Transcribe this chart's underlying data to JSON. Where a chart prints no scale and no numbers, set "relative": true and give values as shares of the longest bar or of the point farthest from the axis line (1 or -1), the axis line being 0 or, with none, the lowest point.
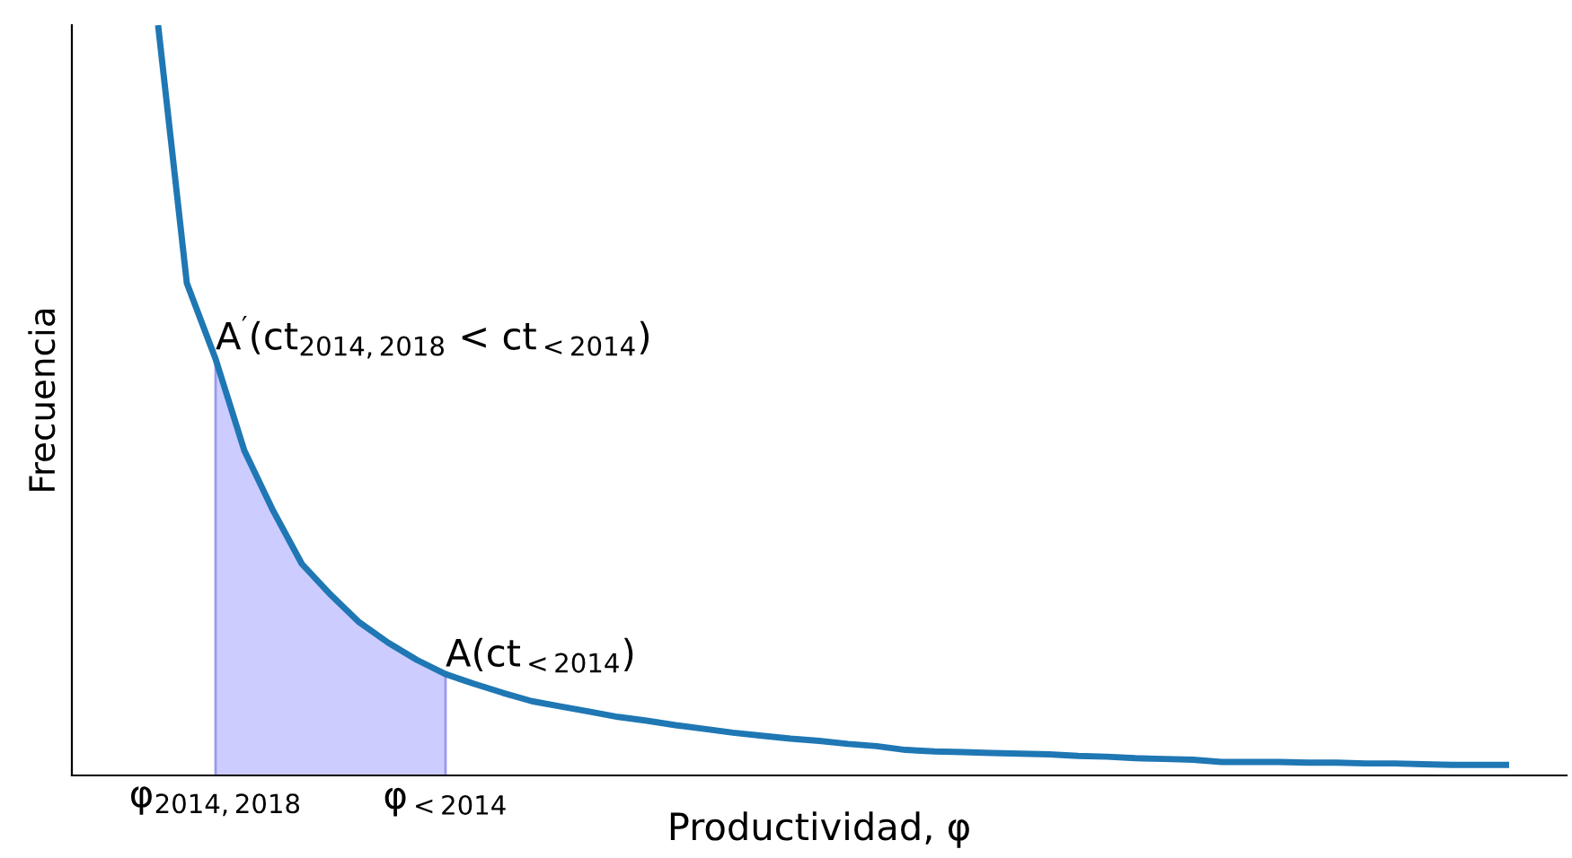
{
  "chart_data": {
    "type": "line",
    "relative": true,
    "xlabel": "Productividad, φ",
    "ylabel": "Frecuencia",
    "categories": [
      null,
      null,
      "φ$_{2014,2018}$",
      null,
      null,
      null,
      null,
      null,
      null,
      null,
      "φ$_{<2014}$",
      null,
      null,
      null,
      null,
      null,
      null,
      null,
      null,
      null,
      null,
      null,
      null,
      null,
      null,
      null,
      null,
      null,
      null,
      null,
      null,
      null,
      null,
      null,
      null,
      null,
      null,
      null,
      null,
      null,
      null,
      null,
      null,
      null,
      null,
      null,
      null,
      null
    ],
    "series": [
      {
        "type": "area",
        "color": "#ccccff",
        "values": [
          null,
          null,
          0.555,
          0.433,
          0.353,
          0.282,
          0.241,
          0.204,
          0.177,
          0.154,
          0.135,
          null,
          null,
          null,
          null,
          null,
          null,
          null,
          null,
          null,
          null,
          null,
          null,
          null,
          null,
          null,
          null,
          null,
          null,
          null,
          null,
          null,
          null,
          null,
          null,
          null,
          null,
          null,
          null,
          null,
          null,
          null,
          null,
          null,
          null,
          null,
          null,
          null
        ]
      },
      {
        "color": "#1f77b4",
        "values": [
          1.0,
          0.656,
          0.555,
          0.433,
          0.353,
          0.282,
          0.241,
          0.204,
          0.177,
          0.154,
          0.135,
          0.122,
          0.11,
          0.099,
          0.092,
          0.085,
          0.078,
          0.073,
          0.067,
          0.062,
          0.057,
          0.053,
          0.049,
          0.046,
          0.042,
          0.039,
          0.034,
          0.032,
          0.031,
          0.03,
          0.029,
          0.028,
          0.026,
          0.025,
          0.023,
          0.022,
          0.021,
          0.018,
          0.018,
          0.018,
          0.017,
          0.017,
          0.016,
          0.016,
          0.015,
          0.014,
          0.014,
          0.014
        ]
      }
    ],
    "annotations": [
      "A$^{′}$(ct$_{2014,2018}$ < ct$_{<2014}$)",
      "A(ct$_{<2014}$)"
    ],
    "grid": false,
    "legend": false
  }
}
